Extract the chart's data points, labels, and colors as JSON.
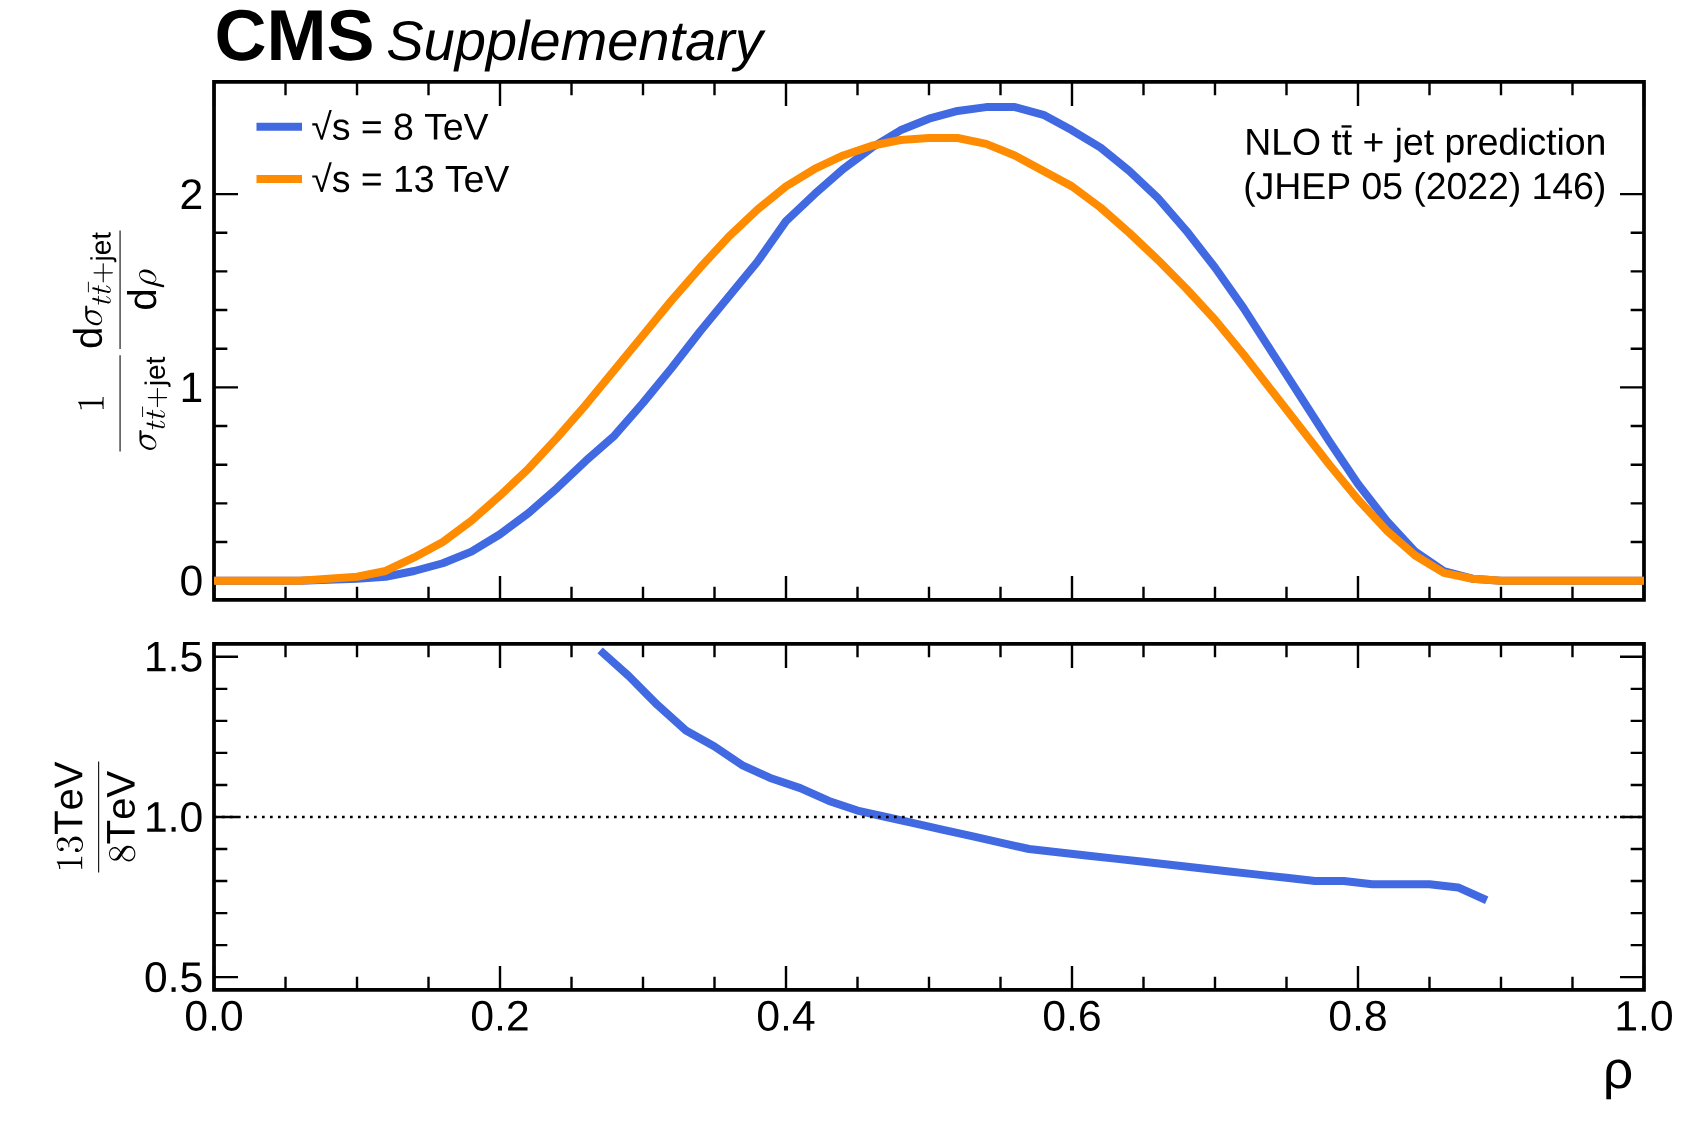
{
  "chart_data": [
    {
      "type": "line",
      "title": "CMS",
      "subtitle": "Supplementary",
      "ylabel": "\\frac{1}{\\sigma_{t\\bar{t}+\\mathrm{jet}}}\\frac{\\mathrm{d}\\sigma_{t\\bar{t}+\\mathrm{jet}}}{\\mathrm{d}\\rho}",
      "annotations": [
        "NLO tt̄ + jet prediction",
        "(JHEP 05 (2022) 146)"
      ],
      "x": [
        0,
        0.06,
        0.1,
        0.12,
        0.14,
        0.16,
        0.18,
        0.2,
        0.22,
        0.24,
        0.26,
        0.28,
        0.3,
        0.32,
        0.34,
        0.36,
        0.38,
        0.4,
        0.42,
        0.44,
        0.46,
        0.48,
        0.5,
        0.52,
        0.54,
        0.56,
        0.58,
        0.6,
        0.62,
        0.64,
        0.66,
        0.68,
        0.7,
        0.72,
        0.74,
        0.76,
        0.78,
        0.8,
        0.82,
        0.84,
        0.86,
        0.88,
        0.9,
        1.0
      ],
      "series": [
        {
          "name": "√s = 8 TeV",
          "color": "#4169e1",
          "values": [
            0,
            0,
            0.01,
            0.02,
            0.05,
            0.09,
            0.15,
            0.24,
            0.35,
            0.48,
            0.62,
            0.75,
            0.92,
            1.1,
            1.29,
            1.47,
            1.65,
            1.86,
            2.0,
            2.13,
            2.24,
            2.33,
            2.39,
            2.43,
            2.45,
            2.45,
            2.41,
            2.33,
            2.24,
            2.12,
            1.98,
            1.81,
            1.62,
            1.41,
            1.18,
            0.95,
            0.72,
            0.5,
            0.31,
            0.15,
            0.05,
            0.01,
            0,
            0
          ]
        },
        {
          "name": "√s = 13 TeV",
          "color": "#ff8c00",
          "values": [
            0,
            0,
            0.02,
            0.05,
            0.12,
            0.2,
            0.31,
            0.44,
            0.58,
            0.74,
            0.91,
            1.09,
            1.27,
            1.45,
            1.62,
            1.78,
            1.92,
            2.04,
            2.13,
            2.2,
            2.25,
            2.28,
            2.29,
            2.29,
            2.26,
            2.2,
            2.12,
            2.04,
            1.93,
            1.8,
            1.66,
            1.51,
            1.35,
            1.17,
            0.98,
            0.79,
            0.6,
            0.42,
            0.26,
            0.13,
            0.04,
            0.01,
            0,
            0
          ]
        }
      ],
      "xlim": [
        0,
        1
      ],
      "xticks": [
        {
          "value": 0,
          "label": null
        },
        {
          "value": 0.2,
          "label": null
        },
        {
          "value": 0.4,
          "label": null
        },
        {
          "value": 0.6,
          "label": null
        },
        {
          "value": 0.8,
          "label": null
        },
        {
          "value": 1,
          "label": null
        }
      ],
      "ylim": [
        -0.1,
        2.58
      ],
      "yticks": [
        0,
        1,
        2
      ],
      "tick_labels": "y",
      "legend": "top left",
      "line_style": "solid"
    },
    {
      "type": "line",
      "xlabel": "ρ",
      "ylabel": "\\frac{13\\mathrm{TeV}}{8\\mathrm{TeV}}",
      "x": [
        0.27,
        0.29,
        0.31,
        0.33,
        0.35,
        0.37,
        0.39,
        0.41,
        0.43,
        0.45,
        0.47,
        0.49,
        0.51,
        0.53,
        0.55,
        0.57,
        0.59,
        0.61,
        0.63,
        0.65,
        0.67,
        0.69,
        0.71,
        0.73,
        0.75,
        0.77,
        0.79,
        0.81,
        0.83,
        0.85,
        0.87,
        0.89
      ],
      "series": [
        {
          "color": "#4169e1",
          "values": [
            1.52,
            1.44,
            1.35,
            1.27,
            1.22,
            1.16,
            1.12,
            1.09,
            1.05,
            1.02,
            1.0,
            0.98,
            0.96,
            0.94,
            0.92,
            0.9,
            0.89,
            0.88,
            0.87,
            0.86,
            0.85,
            0.84,
            0.83,
            0.82,
            0.81,
            0.8,
            0.8,
            0.79,
            0.79,
            0.79,
            0.78,
            0.74
          ]
        }
      ],
      "xlim": [
        0,
        1
      ],
      "xticks": [
        {
          "value": 0,
          "label": "0.0"
        },
        0.2,
        0.4,
        0.6,
        0.8,
        {
          "value": 1,
          "label": "1.0"
        }
      ],
      "ylim": [
        0.46,
        1.54
      ],
      "yticks": [
        0.5,
        {
          "value": 1,
          "label": "1.0"
        },
        1.5
      ],
      "ref_lines": [
        {
          "axis": "y",
          "value": 1,
          "color": "#000000",
          "line_style": "dotted"
        }
      ],
      "line_style": "solid"
    }
  ]
}
